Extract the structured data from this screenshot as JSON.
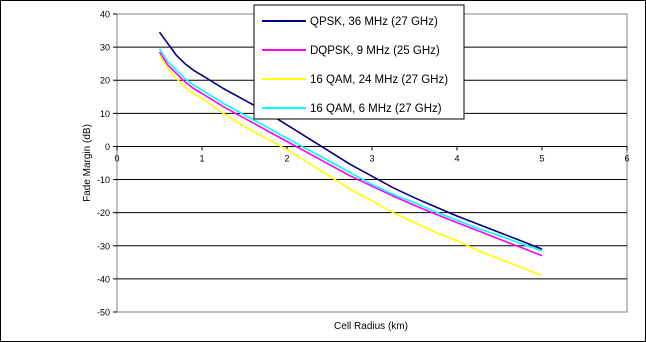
{
  "chart_data": {
    "type": "line",
    "title": "",
    "xlabel": "Cell Radius (km)",
    "ylabel": "Fade Margin (dB)",
    "xlim": [
      0,
      6
    ],
    "ylim": [
      -50,
      40
    ],
    "xticks": [
      0,
      1,
      2,
      3,
      4,
      5,
      6
    ],
    "yticks": [
      40,
      30,
      20,
      10,
      0,
      -10,
      -20,
      -30,
      -40,
      -50
    ],
    "grid": "horizontal",
    "legend_position": "top-center",
    "series": [
      {
        "name": "QPSK, 36 MHz (27 GHz)",
        "color": "#000080",
        "x": [
          0.5,
          0.6,
          0.7,
          0.8,
          0.9,
          1.0,
          1.25,
          1.5,
          1.75,
          2.0,
          2.25,
          2.5,
          2.75,
          3.0,
          3.25,
          3.5,
          3.75,
          4.0,
          4.25,
          4.5,
          4.75,
          5.0
        ],
        "y": [
          34.5,
          31.0,
          27.5,
          25.0,
          23.0,
          21.5,
          17.5,
          14.0,
          10.5,
          6.5,
          2.5,
          -1.5,
          -5.5,
          -9.0,
          -12.5,
          -15.5,
          -18.3,
          -21.0,
          -23.5,
          -26.0,
          -28.5,
          -31.0
        ]
      },
      {
        "name": "DQPSK, 9 MHz (25 GHz)",
        "color": "#ff00ff",
        "x": [
          0.5,
          0.6,
          0.7,
          0.8,
          0.9,
          1.0,
          1.25,
          1.5,
          1.75,
          2.0,
          2.25,
          2.5,
          2.75,
          3.0,
          3.25,
          3.5,
          3.75,
          4.0,
          4.25,
          4.5,
          4.75,
          5.0
        ],
        "y": [
          28.5,
          24.5,
          22.0,
          19.5,
          17.5,
          16.0,
          12.0,
          8.5,
          5.0,
          1.5,
          -2.0,
          -5.5,
          -9.0,
          -12.0,
          -15.0,
          -17.8,
          -20.5,
          -23.0,
          -25.5,
          -28.0,
          -30.5,
          -33.0
        ]
      },
      {
        "name": "16 QAM, 24 MHz (27 GHz)",
        "color": "#ffff00",
        "x": [
          0.5,
          0.6,
          0.7,
          0.8,
          0.9,
          1.0,
          1.25,
          1.5,
          1.75,
          2.0,
          2.25,
          2.5,
          2.75,
          3.0,
          3.25,
          3.5,
          3.75,
          4.0,
          4.25,
          4.5,
          4.75,
          5.0
        ],
        "y": [
          27.5,
          23.5,
          20.5,
          18.0,
          16.0,
          14.5,
          10.0,
          6.0,
          2.5,
          -1.0,
          -5.0,
          -9.0,
          -13.0,
          -16.5,
          -20.0,
          -23.0,
          -26.0,
          -28.5,
          -31.5,
          -34.0,
          -36.5,
          -39.0
        ]
      },
      {
        "name": "16 QAM, 6 MHz (27 GHz)",
        "color": "#00ffff",
        "x": [
          0.5,
          0.6,
          0.7,
          0.8,
          0.9,
          1.0,
          1.25,
          1.5,
          1.75,
          2.0,
          2.25,
          2.5,
          2.75,
          3.0,
          3.25,
          3.5,
          3.75,
          4.0,
          4.25,
          4.5,
          4.75,
          5.0
        ],
        "y": [
          29.5,
          25.5,
          23.0,
          20.5,
          18.5,
          17.0,
          13.0,
          9.5,
          6.0,
          2.5,
          -1.0,
          -4.5,
          -8.0,
          -11.5,
          -14.5,
          -17.0,
          -19.8,
          -22.3,
          -24.8,
          -27.0,
          -29.3,
          -31.5
        ]
      }
    ]
  }
}
